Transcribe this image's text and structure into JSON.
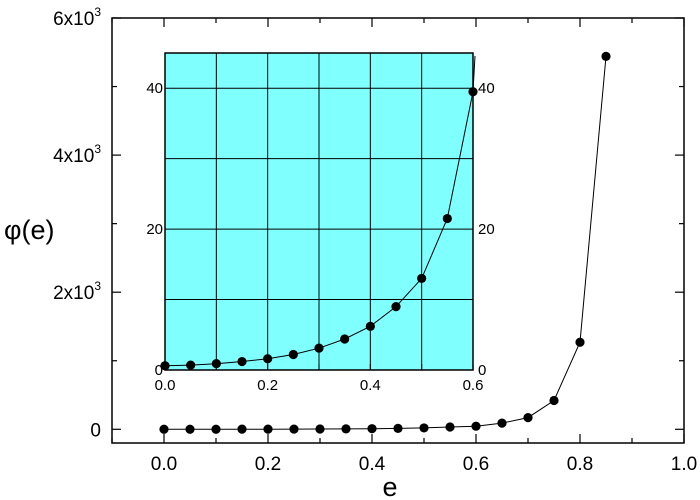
{
  "chart_data": [
    {
      "type": "scatter",
      "role": "main",
      "xlabel": "e",
      "ylabel": "φ(e)",
      "xlim": [
        -0.1,
        1.0
      ],
      "ylim": [
        -200,
        6000
      ],
      "x_ticks": [
        0.0,
        0.2,
        0.4,
        0.6,
        0.8,
        1.0
      ],
      "x_tick_labels": [
        "0.0",
        "0.2",
        "0.4",
        "0.6",
        "0.8",
        "1.0"
      ],
      "y_ticks": [
        0,
        2000,
        4000,
        6000
      ],
      "y_tick_labels": [
        {
          "mantissa": "0",
          "exponent": ""
        },
        {
          "mantissa": "2x10",
          "exponent": "3"
        },
        {
          "mantissa": "4x10",
          "exponent": "3"
        },
        {
          "mantissa": "6x10",
          "exponent": "3"
        }
      ],
      "grid": false,
      "fit_curve": true,
      "series": [
        {
          "x": [
            0.0,
            0.05,
            0.1,
            0.15,
            0.2,
            0.25,
            0.3,
            0.35,
            0.4,
            0.45,
            0.5,
            0.55,
            0.6,
            0.65,
            0.7,
            0.75,
            0.8,
            0.85
          ],
          "y": [
            1,
            1,
            1,
            2,
            2,
            3,
            4,
            6,
            9,
            13,
            20,
            33,
            45,
            90,
            170,
            420,
            1270,
            5440
          ]
        }
      ]
    },
    {
      "type": "scatter",
      "role": "inset",
      "background": "#80ffff",
      "xlim": [
        0.0,
        0.6
      ],
      "ylim": [
        0,
        45
      ],
      "x_ticks": [
        0.0,
        0.2,
        0.4,
        0.6
      ],
      "x_tick_labels": [
        "0.0",
        "0.2",
        "0.4",
        "0.6"
      ],
      "y_ticks": [
        0,
        20,
        40
      ],
      "y_tick_labels": [
        "0",
        "20",
        "40"
      ],
      "right_y_tick_labels": [
        "0",
        "20",
        "40"
      ],
      "grid": true,
      "grid_x": [
        0.1,
        0.2,
        0.3,
        0.4,
        0.5
      ],
      "grid_y": [
        10,
        20,
        30,
        40
      ],
      "fit_curve": true,
      "series": [
        {
          "x": [
            0.0,
            0.05,
            0.1,
            0.15,
            0.2,
            0.25,
            0.3,
            0.35,
            0.4,
            0.45,
            0.5,
            0.55,
            0.6
          ],
          "y": [
            0.6,
            0.7,
            0.9,
            1.2,
            1.6,
            2.2,
            3.1,
            4.4,
            6.2,
            9.0,
            13.0,
            21.5,
            39.5
          ]
        }
      ]
    }
  ]
}
